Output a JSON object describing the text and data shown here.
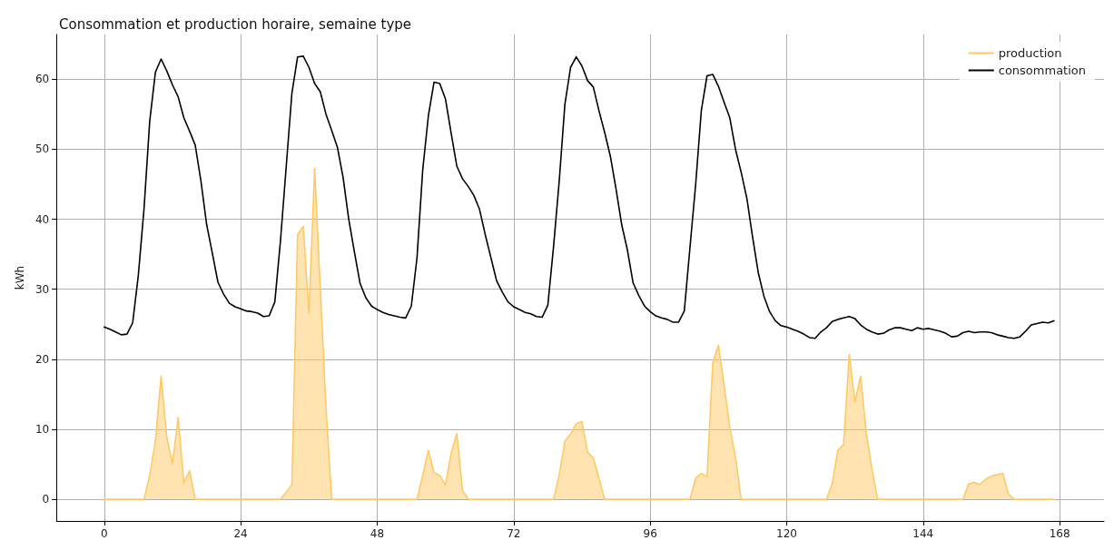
{
  "chart_data": {
    "type": "line",
    "title": "Consommation et production horaire, semaine type",
    "ylabel": "kWh",
    "x": [
      0,
      1,
      2,
      3,
      4,
      5,
      6,
      7,
      8,
      9,
      10,
      11,
      12,
      13,
      14,
      15,
      16,
      17,
      18,
      19,
      20,
      21,
      22,
      23,
      24,
      25,
      26,
      27,
      28,
      29,
      30,
      31,
      32,
      33,
      34,
      35,
      36,
      37,
      38,
      39,
      40,
      41,
      42,
      43,
      44,
      45,
      46,
      47,
      48,
      49,
      50,
      51,
      52,
      53,
      54,
      55,
      56,
      57,
      58,
      59,
      60,
      61,
      62,
      63,
      64,
      65,
      66,
      67,
      68,
      69,
      70,
      71,
      72,
      73,
      74,
      75,
      76,
      77,
      78,
      79,
      80,
      81,
      82,
      83,
      84,
      85,
      86,
      87,
      88,
      89,
      90,
      91,
      92,
      93,
      94,
      95,
      96,
      97,
      98,
      99,
      100,
      101,
      102,
      103,
      104,
      105,
      106,
      107,
      108,
      109,
      110,
      111,
      112,
      113,
      114,
      115,
      116,
      117,
      118,
      119,
      120,
      121,
      122,
      123,
      124,
      125,
      126,
      127,
      128,
      129,
      130,
      131,
      132,
      133,
      134,
      135,
      136,
      137,
      138,
      139,
      140,
      141,
      142,
      143,
      144,
      145,
      146,
      147,
      148,
      149,
      150,
      151,
      152,
      153,
      154,
      155,
      156,
      157,
      158,
      159,
      160,
      161,
      162,
      163,
      164,
      165,
      166,
      167
    ],
    "series": [
      {
        "name": "production",
        "type": "area",
        "color": "#ffc966",
        "values": [
          0,
          0,
          0,
          0,
          0,
          0,
          0,
          0,
          3.4,
          8.3,
          17.6,
          8.9,
          5.1,
          11.7,
          2.3,
          4.1,
          0,
          0,
          0,
          0,
          0,
          0,
          0,
          0,
          0,
          0,
          0,
          0,
          0,
          0,
          0,
          0,
          1.0,
          2.1,
          37.8,
          39,
          26.6,
          47.3,
          30,
          13,
          0,
          0,
          0,
          0,
          0,
          0,
          0,
          0,
          0,
          0,
          0,
          0,
          0,
          0,
          0,
          0,
          3.4,
          7.0,
          3.8,
          3.4,
          2.0,
          6.6,
          9.4,
          1.3,
          0,
          0,
          0,
          0,
          0,
          0,
          0,
          0,
          0,
          0,
          0,
          0,
          0,
          0,
          0,
          0,
          3.4,
          8.3,
          9.3,
          10.8,
          11.1,
          6.7,
          5.9,
          3.0,
          0,
          0,
          0,
          0,
          0,
          0,
          0,
          0,
          0,
          0,
          0,
          0,
          0,
          0,
          0,
          0,
          3.0,
          3.7,
          3.2,
          19.5,
          22.0,
          16.3,
          10.3,
          6.0,
          0,
          0,
          0,
          0,
          0,
          0,
          0,
          0,
          0,
          0,
          0,
          0,
          0,
          0,
          0,
          0,
          2.2,
          7.0,
          7.8,
          20.7,
          13.9,
          17.6,
          9.5,
          4.3,
          0,
          0,
          0,
          0,
          0,
          0,
          0,
          0,
          0,
          0,
          0,
          0,
          0,
          0,
          0,
          0,
          2.2,
          2.4,
          2.1,
          2.9,
          3.3,
          3.5,
          3.7,
          0.7,
          0,
          0,
          0,
          0,
          0,
          0,
          0,
          0
        ]
      },
      {
        "name": "consommation",
        "color": "#000000",
        "values": [
          24.6,
          24.3,
          23.9,
          23.5,
          23.6,
          25.2,
          32,
          41.5,
          54,
          61,
          62.9,
          61.2,
          59.2,
          57.5,
          54.5,
          52.6,
          50.6,
          45.5,
          39.3,
          35.2,
          31.0,
          29.3,
          28.0,
          27.5,
          27.2,
          26.9,
          26.8,
          26.6,
          26.1,
          26.2,
          28.2,
          37,
          47.5,
          58,
          63.2,
          63.3,
          61.7,
          59.4,
          58.2,
          55,
          52.7,
          50.3,
          46,
          40,
          35.3,
          30.8,
          28.8,
          27.6,
          27.1,
          26.7,
          26.4,
          26.2,
          26.0,
          25.9,
          27.6,
          34.5,
          47,
          54.8,
          59.6,
          59.4,
          57.2,
          52.3,
          47.6,
          45.8,
          44.7,
          43.4,
          41.4,
          37.8,
          34.5,
          31.2,
          29.6,
          28.2,
          27.5,
          27.1,
          26.7,
          26.5,
          26.1,
          26.0,
          27.7,
          36,
          45.4,
          56.4,
          61.7,
          63.2,
          61.9,
          59.8,
          58.9,
          55.5,
          52.4,
          49,
          44.3,
          39.2,
          35.6,
          30.9,
          29.1,
          27.6,
          26.8,
          26.2,
          25.9,
          25.7,
          25.3,
          25.3,
          26.9,
          36,
          45,
          55.6,
          60.5,
          60.7,
          59,
          56.7,
          54.5,
          50,
          46.7,
          43,
          37.5,
          32.4,
          29,
          26.8,
          25.5,
          24.8,
          24.6,
          24.3,
          24.0,
          23.6,
          23.1,
          23.0,
          23.9,
          24.5,
          25.4,
          25.7,
          25.9,
          26.1,
          25.8,
          24.9,
          24.3,
          23.9,
          23.6,
          23.7,
          24.2,
          24.5,
          24.5,
          24.3,
          24.1,
          24.5,
          24.3,
          24.4,
          24.2,
          24.0,
          23.7,
          23.2,
          23.3,
          23.8,
          24.0,
          23.8,
          23.9,
          23.9,
          23.8,
          23.5,
          23.3,
          23.1,
          23.0,
          23.2,
          24.0,
          24.9,
          25.1,
          25.3,
          25.2,
          25.5
        ]
      }
    ],
    "xlim": [
      -8.4,
      175.8
    ],
    "xticks": [
      0,
      24,
      48,
      72,
      96,
      120,
      144,
      168
    ],
    "ylim": [
      -3.1,
      66.4
    ],
    "yticks": [
      0,
      10,
      20,
      30,
      40,
      50,
      60
    ],
    "grid": true,
    "legend": "top right",
    "marker": "none",
    "line_style": "solid"
  }
}
